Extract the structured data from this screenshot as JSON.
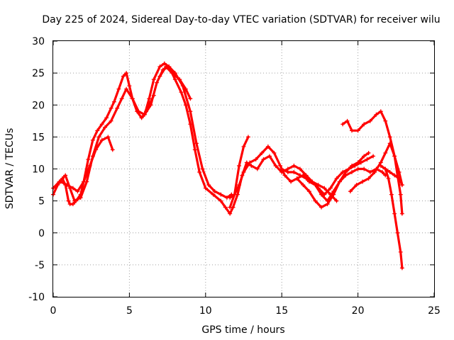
{
  "chart_data": {
    "type": "line",
    "title": "Day 225 of 2024, Sidereal Day-to-day VTEC variation (SDTVAR) for receiver wilu",
    "xlabel": "GPS time / hours",
    "ylabel": "SDTVAR / TECUs",
    "xlim": [
      0,
      25
    ],
    "ylim": [
      -10,
      30
    ],
    "xticks": [
      "0",
      "5",
      "10",
      "15",
      "20",
      "25"
    ],
    "yticks": [
      "-10",
      "-5",
      "0",
      "5",
      "10",
      "15",
      "20",
      "25",
      "30"
    ],
    "grid": true,
    "color": "#ff0000",
    "marker": "plus",
    "series": [
      {
        "name": "track-1",
        "x": [
          0.0,
          0.3,
          0.6,
          0.8,
          1.0,
          1.1,
          1.3,
          1.5,
          1.8,
          2.0,
          2.3,
          2.6,
          2.9,
          3.2,
          3.5,
          3.8,
          4.0,
          4.3,
          4.6,
          4.8,
          5.0,
          5.2,
          5.5,
          5.8,
          6.0,
          6.3,
          6.6,
          7.0,
          7.3,
          7.6,
          8.0,
          8.4,
          8.7,
          9.0,
          9.3,
          9.6,
          10.0,
          10.5,
          11.0,
          11.3,
          11.6,
          11.8
        ],
        "y": [
          6.0,
          7.5,
          8.5,
          7.5,
          5.0,
          4.5,
          4.5,
          5.0,
          6.0,
          8.0,
          11.5,
          14.5,
          16.0,
          17.0,
          18.0,
          19.5,
          20.5,
          22.5,
          24.5,
          25.0,
          23.0,
          21.0,
          19.0,
          18.0,
          18.5,
          21.0,
          24.0,
          26.0,
          26.5,
          26.0,
          24.0,
          22.0,
          20.0,
          17.0,
          13.0,
          9.5,
          7.0,
          6.0,
          5.0,
          4.0,
          3.0,
          4.0
        ]
      },
      {
        "name": "track-2",
        "x": [
          0.0,
          0.4,
          0.8,
          1.1,
          1.4,
          1.8,
          2.2,
          2.6,
          3.0,
          3.4,
          3.8,
          4.2,
          4.5,
          4.8,
          5.2,
          5.6,
          6.0,
          6.4,
          6.8,
          7.2,
          7.6,
          8.0,
          8.5,
          9.0,
          9.4,
          9.8,
          10.2,
          10.6,
          11.0,
          11.4,
          11.7
        ],
        "y": [
          7.0,
          8.0,
          9.0,
          7.0,
          5.0,
          5.5,
          8.0,
          12.0,
          15.0,
          16.5,
          17.5,
          19.5,
          21.0,
          22.5,
          21.0,
          19.0,
          18.5,
          20.0,
          23.5,
          25.5,
          26.0,
          25.0,
          23.0,
          19.0,
          14.0,
          10.0,
          7.5,
          6.5,
          6.0,
          5.5,
          6.0
        ]
      },
      {
        "name": "track-3",
        "x": [
          0.5,
          0.9,
          1.3,
          1.6,
          2.0,
          2.4,
          2.8,
          3.2,
          3.6,
          3.9
        ],
        "y": [
          8.0,
          7.5,
          7.0,
          6.5,
          8.0,
          10.5,
          13.0,
          14.5,
          15.0,
          13.0
        ]
      },
      {
        "name": "track-4",
        "x": [
          5.8,
          6.1,
          6.4,
          6.6
        ],
        "y": [
          18.0,
          19.0,
          20.5,
          21.5
        ]
      },
      {
        "name": "track-5",
        "x": [
          7.0,
          7.4,
          7.8,
          8.3,
          8.7,
          9.0
        ],
        "y": [
          24.5,
          26.0,
          25.0,
          24.0,
          22.5,
          21.0
        ]
      },
      {
        "name": "track-6",
        "x": [
          11.6,
          11.9,
          12.2,
          12.5,
          12.9,
          13.3,
          13.7,
          14.1,
          14.5,
          14.9,
          15.2,
          15.6,
          16.0,
          16.4,
          16.8,
          17.2,
          17.6,
          18.0,
          18.4,
          18.8,
          19.2,
          19.6,
          20.0,
          20.4,
          20.7
        ],
        "y": [
          5.5,
          6.0,
          7.5,
          9.5,
          11.0,
          11.5,
          12.5,
          13.5,
          12.5,
          10.5,
          9.0,
          8.0,
          8.5,
          7.5,
          6.5,
          5.0,
          4.0,
          4.5,
          6.0,
          8.0,
          9.5,
          10.5,
          11.0,
          12.0,
          12.5
        ]
      },
      {
        "name": "track-7",
        "x": [
          11.8,
          12.1,
          12.4,
          12.7,
          13.0,
          13.4,
          13.8,
          14.2,
          14.6,
          15.0,
          15.4,
          15.8,
          16.2,
          16.6,
          17.0,
          17.4,
          17.8,
          18.2,
          18.6,
          19.0,
          19.4,
          19.8,
          20.2,
          20.6,
          21.0
        ],
        "y": [
          4.0,
          6.0,
          9.0,
          11.0,
          10.5,
          10.0,
          11.5,
          12.0,
          10.5,
          9.5,
          10.0,
          10.5,
          10.0,
          9.0,
          8.0,
          7.0,
          6.0,
          7.0,
          8.5,
          9.5,
          10.0,
          10.5,
          11.0,
          11.5,
          12.0
        ]
      },
      {
        "name": "track-8",
        "x": [
          11.6,
          11.9,
          12.2,
          12.5,
          12.8
        ],
        "y": [
          4.0,
          6.0,
          10.5,
          13.5,
          15.0
        ]
      },
      {
        "name": "track-9",
        "x": [
          15.0,
          15.4,
          15.8,
          16.2,
          16.6,
          17.0,
          17.4,
          17.8,
          18.2,
          18.6
        ],
        "y": [
          10.0,
          9.5,
          9.5,
          9.0,
          8.5,
          8.0,
          7.5,
          7.0,
          6.0,
          5.0
        ]
      },
      {
        "name": "track-10",
        "x": [
          16.0,
          16.4,
          16.8,
          17.2,
          17.6,
          18.0,
          18.4,
          18.8,
          19.2,
          19.6,
          20.0,
          20.4,
          20.8,
          21.2,
          21.6,
          21.8
        ],
        "y": [
          8.5,
          9.0,
          8.0,
          7.5,
          6.0,
          5.0,
          6.5,
          8.0,
          9.0,
          9.5,
          10.0,
          10.0,
          9.5,
          10.0,
          9.5,
          9.0
        ]
      },
      {
        "name": "track-11",
        "x": [
          19.0,
          19.3,
          19.6,
          20.0,
          20.4,
          20.8,
          21.2,
          21.5,
          21.8,
          22.1,
          22.4,
          22.7,
          22.9
        ],
        "y": [
          17.0,
          17.5,
          16.0,
          16.0,
          17.0,
          17.5,
          18.5,
          19.0,
          17.5,
          15.0,
          12.0,
          9.5,
          7.5
        ]
      },
      {
        "name": "track-12",
        "x": [
          19.5,
          19.9,
          20.3,
          20.7,
          21.1,
          21.5,
          21.8,
          22.1,
          22.4,
          22.6,
          22.8,
          22.9
        ],
        "y": [
          6.5,
          7.5,
          8.0,
          8.5,
          9.5,
          11.0,
          12.5,
          14.0,
          12.0,
          9.0,
          6.0,
          3.0
        ]
      },
      {
        "name": "track-13",
        "x": [
          21.8,
          22.0,
          22.2,
          22.4,
          22.6,
          22.8,
          22.9
        ],
        "y": [
          10.0,
          8.5,
          6.0,
          3.0,
          0.0,
          -3.0,
          -5.5
        ]
      },
      {
        "name": "track-14",
        "x": [
          21.5,
          21.8,
          22.1,
          22.4,
          22.7,
          22.9
        ],
        "y": [
          10.5,
          10.0,
          9.5,
          9.0,
          8.5,
          7.5
        ]
      }
    ]
  }
}
